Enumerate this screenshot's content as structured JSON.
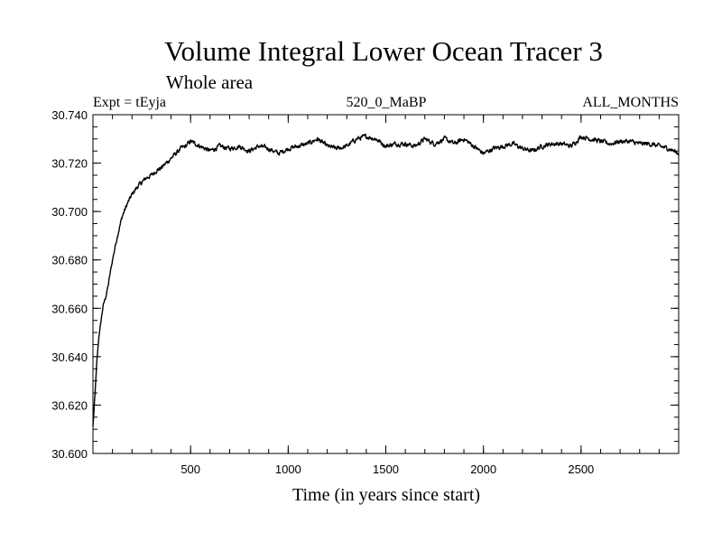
{
  "chart_data": {
    "type": "line",
    "title": "Volume Integral Lower Ocean Tracer 3",
    "subtitle": "Whole area",
    "expt_label": "Expt = tEyja",
    "period_label": "520_0_MaBP",
    "season_label": "ALL_MONTHS",
    "xlabel": "Time (in years since start)",
    "ylabel": "",
    "xlim": [
      0,
      3000
    ],
    "ylim": [
      30.6,
      30.74
    ],
    "x_ticks": [
      500,
      1000,
      1500,
      2000,
      2500
    ],
    "x_tick_labels": [
      "500",
      "1000",
      "1500",
      "2000",
      "2500"
    ],
    "y_ticks": [
      30.6,
      30.62,
      30.64,
      30.66,
      30.68,
      30.7,
      30.72,
      30.74
    ],
    "y_tick_labels": [
      "30.600",
      "30.620",
      "30.640",
      "30.660",
      "30.680",
      "30.700",
      "30.720",
      "30.740"
    ],
    "grid": false,
    "series": [
      {
        "name": "tEyja",
        "color": "#000000",
        "x": [
          0,
          10,
          20,
          30,
          50,
          75,
          100,
          125,
          150,
          175,
          200,
          225,
          250,
          275,
          300,
          325,
          350,
          375,
          400,
          425,
          450,
          475,
          500,
          550,
          600,
          650,
          700,
          750,
          800,
          850,
          900,
          950,
          1000,
          1050,
          1100,
          1150,
          1200,
          1250,
          1300,
          1350,
          1400,
          1450,
          1500,
          1550,
          1600,
          1650,
          1700,
          1750,
          1800,
          1850,
          1900,
          1950,
          2000,
          2050,
          2100,
          2150,
          2200,
          2250,
          2300,
          2350,
          2400,
          2450,
          2500,
          2550,
          2600,
          2650,
          2700,
          2750,
          2800,
          2850,
          2900,
          2950,
          3000
        ],
        "values": [
          30.611,
          30.624,
          30.638,
          30.648,
          30.66,
          30.668,
          30.68,
          30.69,
          30.698,
          30.703,
          30.707,
          30.71,
          30.712,
          30.714,
          30.715,
          30.717,
          30.718,
          30.72,
          30.722,
          30.724,
          30.726,
          30.727,
          30.729,
          30.727,
          30.725,
          30.727,
          30.726,
          30.727,
          30.725,
          30.727,
          30.726,
          30.724,
          30.726,
          30.727,
          30.728,
          30.73,
          30.727,
          30.726,
          30.727,
          30.73,
          30.731,
          30.73,
          30.727,
          30.728,
          30.728,
          30.727,
          30.73,
          30.728,
          30.73,
          30.728,
          30.73,
          30.727,
          30.724,
          30.726,
          30.727,
          30.728,
          30.726,
          30.725,
          30.727,
          30.728,
          30.728,
          30.727,
          30.731,
          30.73,
          30.729,
          30.728,
          30.729,
          30.729,
          30.728,
          30.728,
          30.727,
          30.726,
          30.724
        ]
      }
    ]
  }
}
